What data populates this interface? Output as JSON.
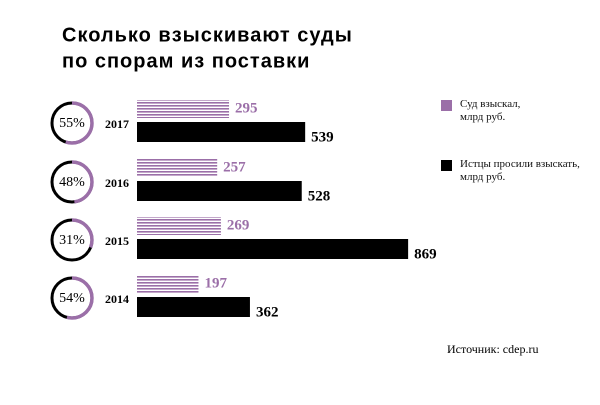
{
  "chart_data": {
    "type": "bar",
    "title": [
      "Сколько взыскивают суды",
      "по спорам из поставки"
    ],
    "categories": [
      "2017",
      "2016",
      "2015",
      "2014"
    ],
    "series": [
      {
        "name": "Суд взыскал,\nмлрд руб.",
        "color": "#9b6fa8",
        "values": [
          295,
          257,
          269,
          197
        ]
      },
      {
        "name": "Истцы просили взыскать,\nмлрд руб.",
        "color": "#000000",
        "values": [
          539,
          528,
          869,
          362
        ]
      }
    ],
    "percent": [
      55,
      48,
      31,
      54
    ],
    "percent_labels": [
      "55%",
      "48%",
      "31%",
      "54%"
    ],
    "source": "Источник: cdep.ru"
  }
}
